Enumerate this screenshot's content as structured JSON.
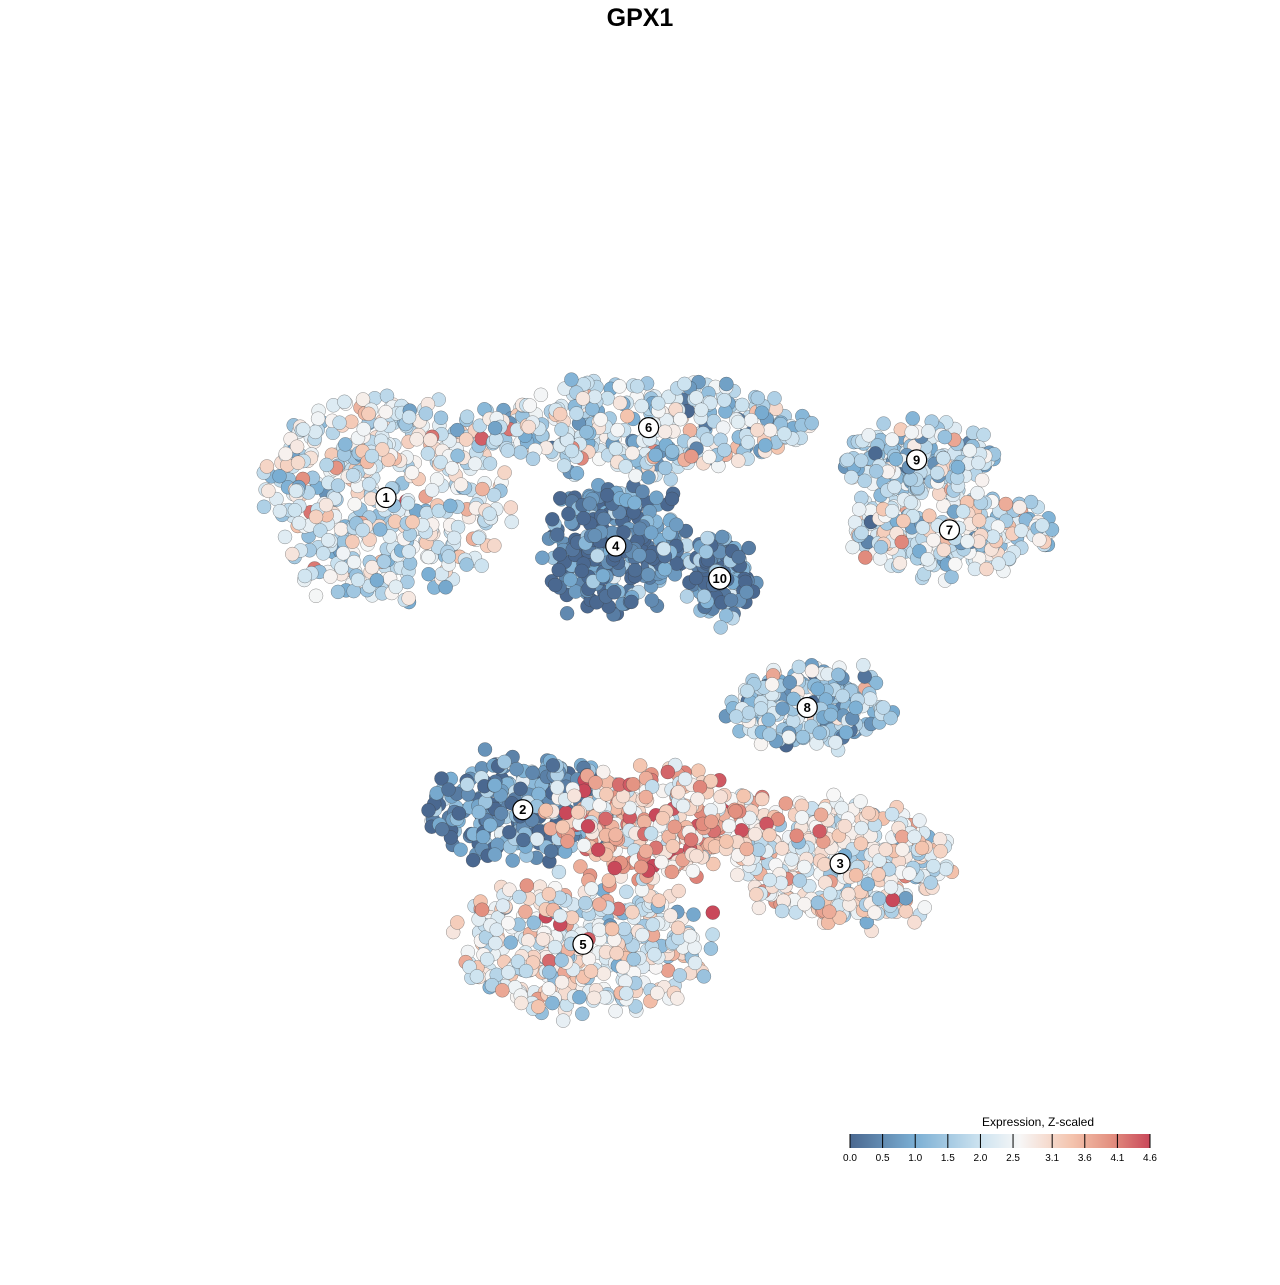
{
  "chart_data": {
    "type": "scatter",
    "title": "GPX1",
    "xlabel": "",
    "ylabel": "",
    "grid": false,
    "legend": {
      "title": "Expression, Z-scaled",
      "placement": "bottom-right",
      "ticks": [
        "0.0",
        "0.5",
        "1.0",
        "1.5",
        "2.0",
        "2.5",
        "3.1",
        "3.6",
        "4.1",
        "4.6"
      ],
      "tick_values": [
        0.0,
        0.5,
        1.0,
        1.5,
        2.0,
        2.5,
        3.1,
        3.6,
        4.1,
        4.6
      ],
      "range": [
        0.0,
        4.6
      ]
    },
    "color_scale": {
      "stops": [
        {
          "value": 0.0,
          "color": "#4a6890"
        },
        {
          "value": 1.0,
          "color": "#7bafd4"
        },
        {
          "value": 2.0,
          "color": "#cde3f0"
        },
        {
          "value": 2.6,
          "color": "#f7f7f7"
        },
        {
          "value": 3.4,
          "color": "#f4c4ae"
        },
        {
          "value": 4.0,
          "color": "#e39080"
        },
        {
          "value": 4.6,
          "color": "#c9485a"
        }
      ]
    },
    "clusters": [
      {
        "label": "1",
        "center": [
          -4.6,
          3.1
        ],
        "spread": [
          2.2,
          1.9
        ],
        "mean": 2.3
      },
      {
        "label": "2",
        "center": [
          -2.1,
          -2.7
        ],
        "spread": [
          1.8,
          0.9
        ],
        "mean": 0.7
      },
      {
        "label": "3",
        "center": [
          3.7,
          -3.7
        ],
        "spread": [
          1.9,
          1.1
        ],
        "mean": 2.5
      },
      {
        "label": "4",
        "center": [
          -0.4,
          2.2
        ],
        "spread": [
          1.3,
          1.1
        ],
        "mean": 0.4
      },
      {
        "label": "5",
        "center": [
          -1.0,
          -5.2
        ],
        "spread": [
          2.3,
          1.3
        ],
        "mean": 2.6
      },
      {
        "label": "6",
        "center": [
          0.2,
          4.4
        ],
        "spread": [
          3.0,
          0.8
        ],
        "mean": 2.0
      },
      {
        "label": "7",
        "center": [
          5.7,
          2.5
        ],
        "spread": [
          1.9,
          0.7
        ],
        "mean": 2.2
      },
      {
        "label": "8",
        "center": [
          3.1,
          -0.8
        ],
        "spread": [
          1.4,
          0.7
        ],
        "mean": 1.5
      },
      {
        "label": "9",
        "center": [
          5.1,
          3.8
        ],
        "spread": [
          1.4,
          0.6
        ],
        "mean": 1.7
      },
      {
        "label": "10",
        "center": [
          1.5,
          1.6
        ],
        "spread": [
          0.5,
          0.7
        ],
        "mean": 0.5
      },
      {
        "label": "",
        "center": [
          0.4,
          -2.9
        ],
        "spread": [
          2.1,
          0.9
        ],
        "mean": 3.2
      }
    ],
    "xlim": [
      -8.0,
      9.0
    ],
    "ylim": [
      -8.0,
      9.0
    ]
  }
}
